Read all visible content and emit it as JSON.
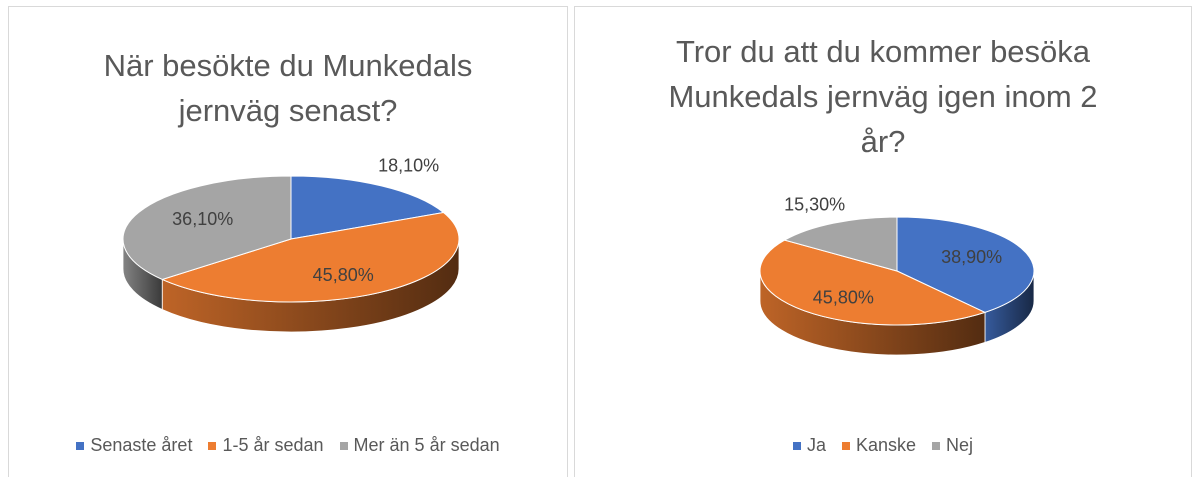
{
  "chart_data": [
    {
      "type": "pie3d",
      "title": "När besökte du Munkedals jernväg senast?",
      "categories": [
        "Senaste året",
        "1-5 år sedan",
        "Mer än 5 år sedan"
      ],
      "values": [
        18.1,
        45.8,
        36.1
      ],
      "value_labels": [
        "18,10%",
        "45,80%",
        "36,10%"
      ],
      "colors": [
        "#4472c4",
        "#ed7d31",
        "#a5a5a5"
      ],
      "legend": "bottom"
    },
    {
      "type": "pie3d",
      "title": "Tror du att du kommer besöka Munkedals jernväg igen inom 2 år?",
      "categories": [
        "Ja",
        "Kanske",
        "Nej"
      ],
      "values": [
        38.9,
        45.8,
        15.3
      ],
      "value_labels": [
        "38,90%",
        "45,80%",
        "15,30%"
      ],
      "colors": [
        "#4472c4",
        "#ed7d31",
        "#a5a5a5"
      ],
      "legend": "bottom"
    }
  ]
}
